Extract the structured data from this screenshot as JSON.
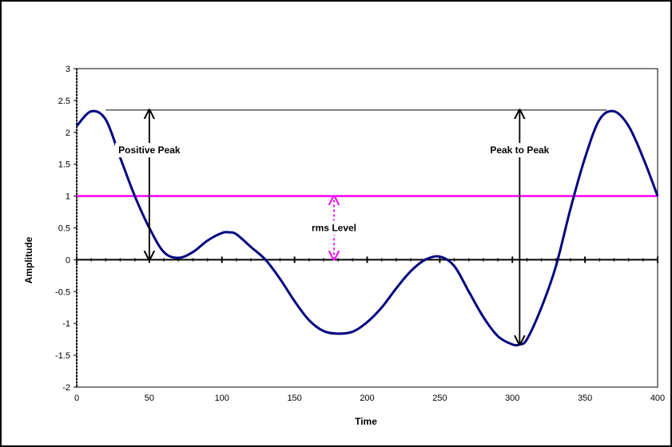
{
  "chart_data": {
    "type": "line",
    "title": "",
    "xlabel": "Time",
    "ylabel": "Amplitude",
    "xlim": [
      0,
      400
    ],
    "ylim": [
      -2,
      3
    ],
    "xticks": [
      0,
      50,
      100,
      150,
      200,
      250,
      300,
      350,
      400
    ],
    "yticks": [
      3,
      2.5,
      2,
      1.5,
      1,
      0.5,
      0,
      -0.5,
      -1,
      -1.5,
      -2
    ],
    "grid": false,
    "legend": "none",
    "series": [
      {
        "x": [
          0,
          10,
          20,
          30,
          40,
          50,
          60,
          70,
          80,
          90,
          100,
          105,
          110,
          120,
          130,
          140,
          150,
          160,
          170,
          180,
          190,
          200,
          210,
          220,
          230,
          240,
          250,
          260,
          270,
          280,
          290,
          300,
          305,
          310,
          320,
          330,
          340,
          350,
          360,
          370,
          380,
          390,
          400
        ],
        "values": [
          2.1,
          2.33,
          2.2,
          1.6,
          1.0,
          0.5,
          0.12,
          0.03,
          0.12,
          0.3,
          0.42,
          0.43,
          0.4,
          0.2,
          0.0,
          -0.3,
          -0.65,
          -0.95,
          -1.12,
          -1.16,
          -1.13,
          -0.98,
          -0.75,
          -0.45,
          -0.18,
          0.0,
          0.05,
          -0.1,
          -0.5,
          -0.9,
          -1.2,
          -1.33,
          -1.33,
          -1.25,
          -0.75,
          -0.1,
          0.8,
          1.6,
          2.2,
          2.33,
          2.1,
          1.6,
          1.0
        ],
        "color": "#000080"
      }
    ],
    "rms_level": {
      "label": "rms Level",
      "value": 1.0,
      "color": "#ff00ff"
    },
    "peak_line": {
      "value": 2.35,
      "x_start": 20,
      "x_end": 365
    },
    "annotations": [
      {
        "label": "Positive Peak",
        "x": 50,
        "y_from": 0,
        "y_to": 2.35,
        "label_y": 1.72
      },
      {
        "label": "Peak to Peak",
        "x": 305,
        "y_from": -1.33,
        "y_to": 2.35,
        "label_y": 1.72
      }
    ]
  }
}
